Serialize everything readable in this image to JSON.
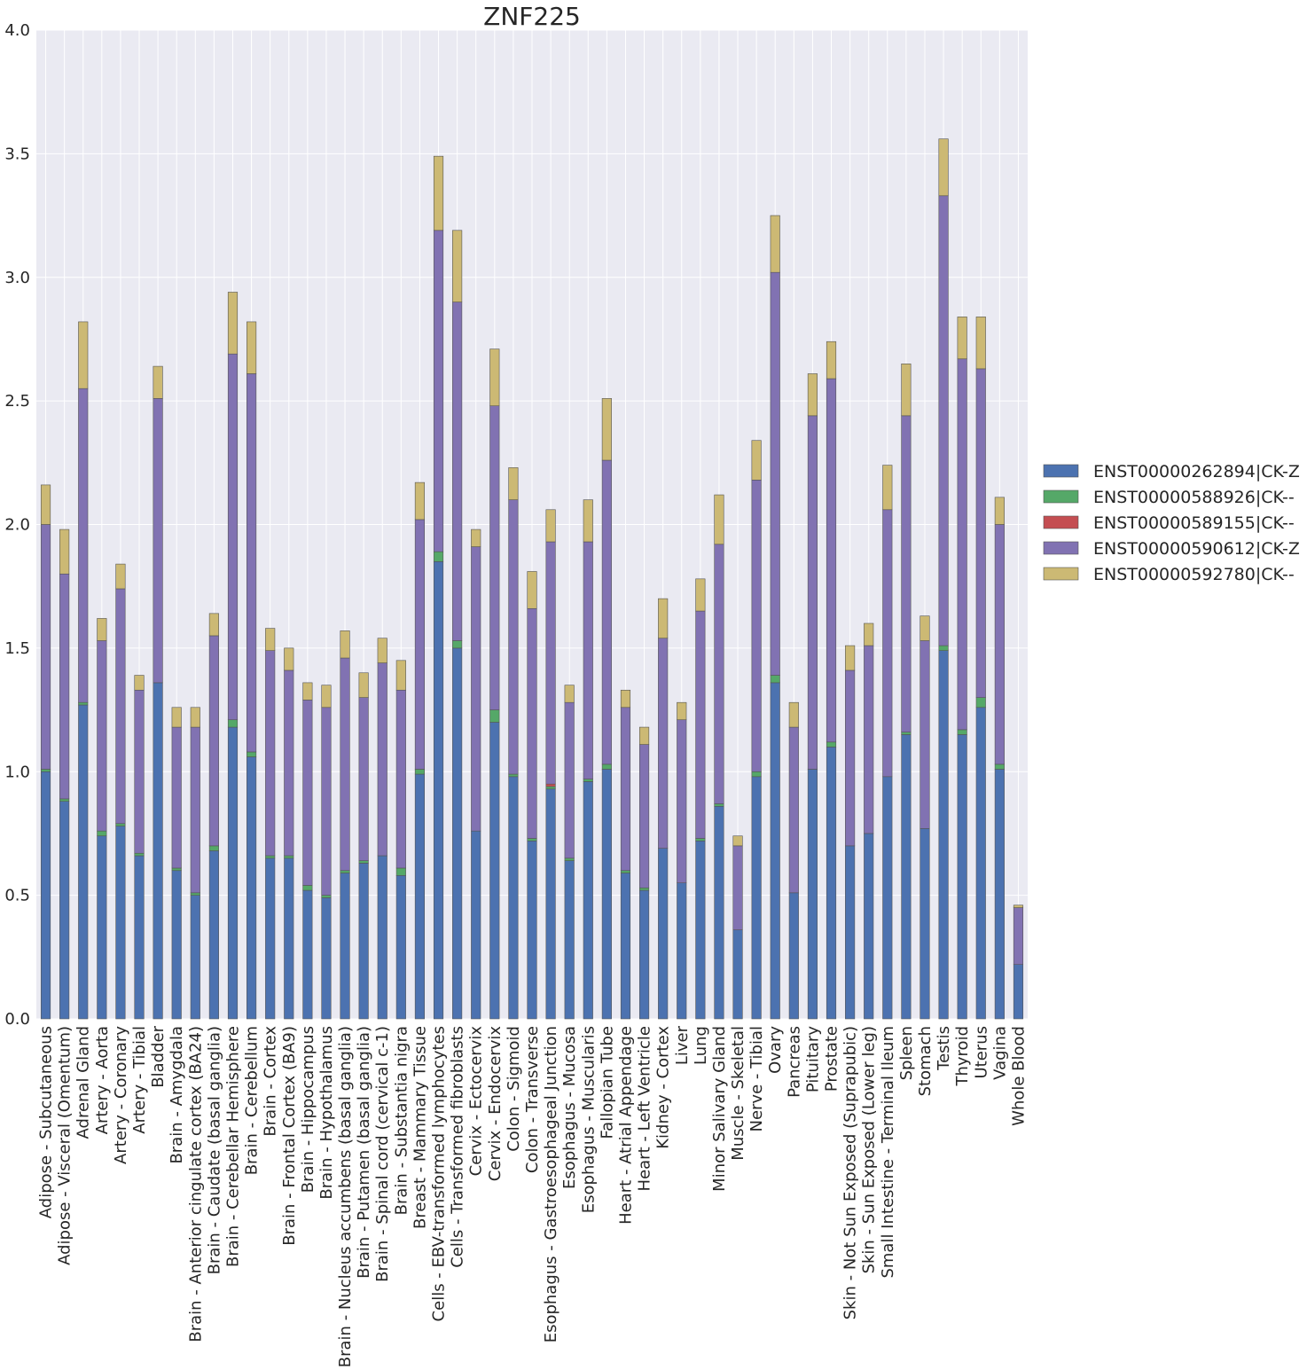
{
  "chart_data": {
    "type": "bar",
    "stacked": true,
    "title": "ZNF225",
    "xlabel": "",
    "ylabel": "",
    "ylim": [
      0,
      4.0
    ],
    "yticks": [
      "0.0",
      "0.5",
      "1.0",
      "1.5",
      "2.0",
      "2.5",
      "3.0",
      "3.5",
      "4.0"
    ],
    "grid": true,
    "legend_position": "right",
    "categories": [
      "Adipose - Subcutaneous",
      "Adipose - Visceral (Omentum)",
      "Adrenal Gland",
      "Artery - Aorta",
      "Artery - Coronary",
      "Artery - Tibial",
      "Bladder",
      "Brain - Amygdala",
      "Brain - Anterior cingulate cortex (BA24)",
      "Brain - Caudate (basal ganglia)",
      "Brain - Cerebellar Hemisphere",
      "Brain - Cerebellum",
      "Brain - Cortex",
      "Brain - Frontal Cortex (BA9)",
      "Brain - Hippocampus",
      "Brain - Hypothalamus",
      "Brain - Nucleus accumbens (basal ganglia)",
      "Brain - Putamen (basal ganglia)",
      "Brain - Spinal cord (cervical c-1)",
      "Brain - Substantia nigra",
      "Breast - Mammary Tissue",
      "Cells - EBV-transformed lymphocytes",
      "Cells - Transformed fibroblasts",
      "Cervix - Ectocervix",
      "Cervix - Endocervix",
      "Colon - Sigmoid",
      "Colon - Transverse",
      "Esophagus - Gastroesophageal Junction",
      "Esophagus - Mucosa",
      "Esophagus - Muscularis",
      "Fallopian Tube",
      "Heart - Atrial Appendage",
      "Heart - Left Ventricle",
      "Kidney - Cortex",
      "Liver",
      "Lung",
      "Minor Salivary Gland",
      "Muscle - Skeletal",
      "Nerve - Tibial",
      "Ovary",
      "Pancreas",
      "Pituitary",
      "Prostate",
      "Skin - Not Sun Exposed (Suprapubic)",
      "Skin - Sun Exposed (Lower leg)",
      "Small Intestine - Terminal Ileum",
      "Spleen",
      "Stomach",
      "Testis",
      "Thyroid",
      "Uterus",
      "Vagina",
      "Whole Blood"
    ],
    "series": [
      {
        "name": "ENST00000262894|CK-Z",
        "color": "#4c72b0",
        "values": [
          1.0,
          0.88,
          1.27,
          0.74,
          0.78,
          0.66,
          1.36,
          0.6,
          0.5,
          0.68,
          1.18,
          1.06,
          0.65,
          0.65,
          0.52,
          0.49,
          0.59,
          0.63,
          0.66,
          0.58,
          0.99,
          1.85,
          1.5,
          0.76,
          1.2,
          0.98,
          0.72,
          0.93,
          0.64,
          0.96,
          1.01,
          0.59,
          0.52,
          0.69,
          0.55,
          0.72,
          0.86,
          0.36,
          0.98,
          1.36,
          0.51,
          1.01,
          1.1,
          0.7,
          0.75,
          0.98,
          1.15,
          0.77,
          1.49,
          1.15,
          1.26,
          1.01,
          0.22
        ]
      },
      {
        "name": "ENST00000588926|CK--",
        "color": "#55a868",
        "values": [
          0.01,
          0.01,
          0.01,
          0.02,
          0.01,
          0.01,
          0.0,
          0.01,
          0.01,
          0.02,
          0.03,
          0.02,
          0.01,
          0.01,
          0.02,
          0.01,
          0.01,
          0.01,
          0.0,
          0.03,
          0.02,
          0.04,
          0.03,
          0.0,
          0.05,
          0.01,
          0.01,
          0.01,
          0.01,
          0.01,
          0.02,
          0.01,
          0.01,
          0.0,
          0.0,
          0.01,
          0.01,
          0.0,
          0.02,
          0.03,
          0.0,
          0.0,
          0.02,
          0.0,
          0.0,
          0.0,
          0.01,
          0.0,
          0.02,
          0.02,
          0.04,
          0.02,
          0.0
        ]
      },
      {
        "name": "ENST00000589155|CK--",
        "color": "#c44e52",
        "values": [
          0,
          0,
          0,
          0,
          0,
          0,
          0,
          0,
          0,
          0,
          0,
          0,
          0,
          0,
          0,
          0,
          0,
          0,
          0,
          0,
          0,
          0,
          0,
          0,
          0,
          0,
          0,
          0.01,
          0,
          0,
          0,
          0,
          0,
          0,
          0,
          0,
          0,
          0,
          0,
          0,
          0,
          0,
          0,
          0,
          0,
          0,
          0,
          0,
          0,
          0,
          0,
          0,
          0
        ]
      },
      {
        "name": "ENST00000590612|CK-Z",
        "color": "#8172b2",
        "values": [
          0.99,
          0.91,
          1.27,
          0.77,
          0.95,
          0.66,
          1.15,
          0.57,
          0.67,
          0.85,
          1.48,
          1.53,
          0.83,
          0.75,
          0.75,
          0.76,
          0.86,
          0.66,
          0.78,
          0.72,
          1.01,
          1.3,
          1.37,
          1.15,
          1.23,
          1.11,
          0.93,
          0.98,
          0.63,
          0.96,
          1.23,
          0.66,
          0.58,
          0.85,
          0.66,
          0.92,
          1.05,
          0.34,
          1.18,
          1.63,
          0.67,
          1.43,
          1.47,
          0.71,
          0.76,
          1.08,
          1.28,
          0.76,
          1.82,
          1.5,
          1.33,
          0.97,
          0.23
        ]
      },
      {
        "name": "ENST00000592780|CK--",
        "color": "#ccb974",
        "values": [
          0.16,
          0.18,
          0.27,
          0.09,
          0.1,
          0.06,
          0.13,
          0.08,
          0.08,
          0.09,
          0.25,
          0.21,
          0.09,
          0.09,
          0.07,
          0.09,
          0.11,
          0.1,
          0.1,
          0.12,
          0.15,
          0.3,
          0.29,
          0.07,
          0.23,
          0.13,
          0.15,
          0.13,
          0.07,
          0.17,
          0.25,
          0.07,
          0.07,
          0.16,
          0.07,
          0.13,
          0.2,
          0.04,
          0.16,
          0.23,
          0.1,
          0.17,
          0.15,
          0.1,
          0.09,
          0.18,
          0.21,
          0.1,
          0.23,
          0.17,
          0.21,
          0.11,
          0.01
        ]
      }
    ]
  }
}
